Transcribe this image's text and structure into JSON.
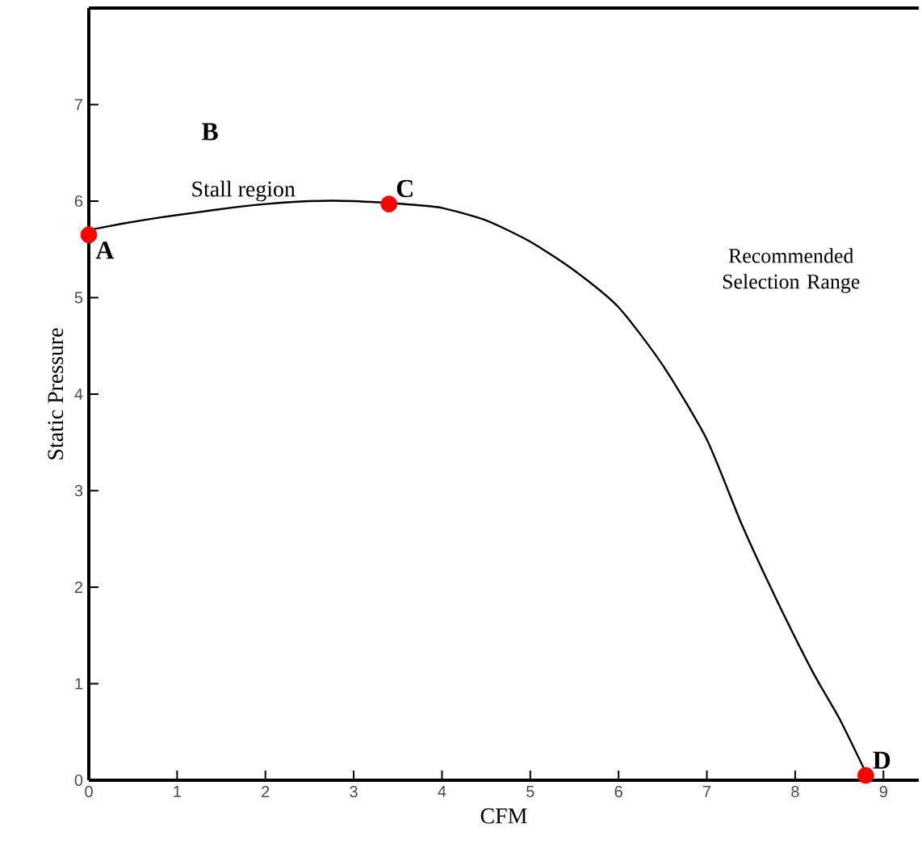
{
  "chart_data": {
    "type": "line",
    "xlabel": "CFM",
    "ylabel": "Static Pressure",
    "xlim": [
      0,
      9.4
    ],
    "ylim": [
      0,
      8
    ],
    "xticks": [
      0,
      1,
      2,
      3,
      4,
      5,
      6,
      7,
      8,
      9
    ],
    "yticks": [
      0,
      1,
      2,
      3,
      4,
      5,
      6,
      7
    ],
    "grid": false,
    "series": [
      {
        "color": "#000000",
        "marker": "none",
        "x": [
          0,
          0.4,
          0.8,
          1.2,
          1.6,
          2.0,
          2.5,
          3.0,
          3.7,
          4.0,
          4.5,
          5.0,
          5.5,
          6.0,
          6.5,
          7.0,
          7.4,
          7.8,
          8.2,
          8.5,
          8.8
        ],
        "values": [
          5.7,
          5.77,
          5.83,
          5.88,
          5.93,
          5.97,
          6.0,
          6.0,
          5.96,
          5.93,
          5.8,
          5.58,
          5.28,
          4.9,
          4.3,
          3.53,
          2.64,
          1.85,
          1.12,
          0.64,
          0.08
        ]
      },
      {
        "type": "scatter",
        "color": "#ff0000",
        "marker": "circle",
        "x": [
          0,
          3.4,
          8.8
        ],
        "values": [
          5.65,
          5.97,
          0.05
        ]
      }
    ],
    "annotations": [
      {
        "text": "A",
        "x": 0,
        "y": 5.65
      },
      "B",
      "Stall region",
      {
        "text": "C",
        "x": 3.4,
        "y": 5.97
      },
      "Recommended Selection Range",
      {
        "text": "D",
        "x": 8.8,
        "y": 0.05
      }
    ]
  }
}
